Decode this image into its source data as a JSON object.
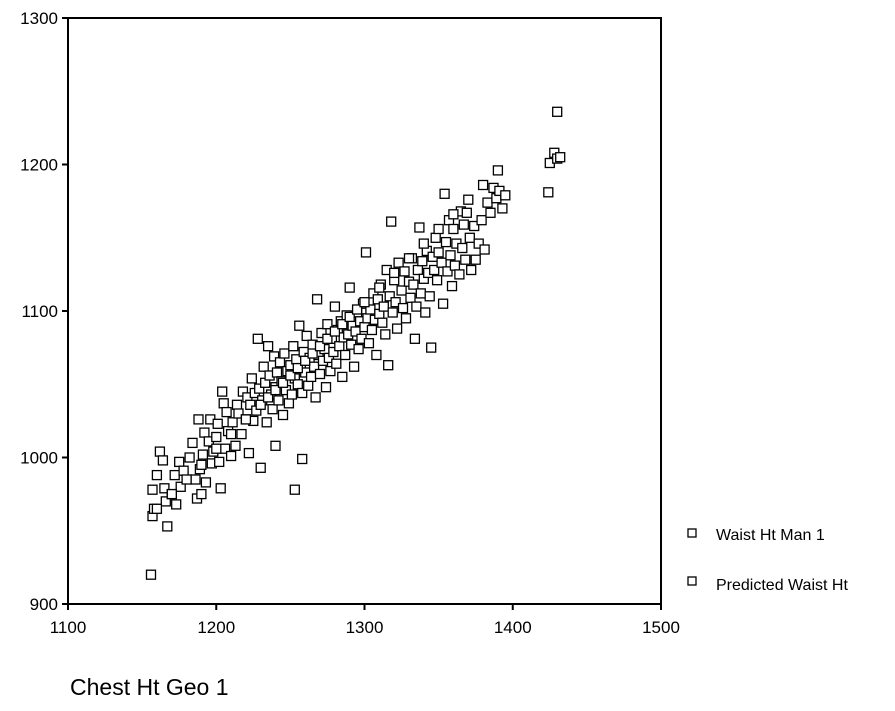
{
  "chart_data": {
    "type": "scatter",
    "title": "",
    "xlabel": "Chest Ht Geo 1",
    "ylabel": "",
    "xlim": [
      1100,
      1500
    ],
    "ylim": [
      900,
      1300
    ],
    "x_ticks": [
      1100,
      1200,
      1300,
      1400,
      1500
    ],
    "y_ticks": [
      900,
      1000,
      1100,
      1200,
      1300
    ],
    "grid": false,
    "legend": {
      "placement": "right",
      "entries": [
        "Waist Ht Man 1",
        "Predicted Waist Ht"
      ]
    },
    "marker": "open-square",
    "colors": {
      "marker_stroke": "#000000",
      "marker_fill": "#ffffff",
      "axes": "#000000"
    },
    "series": [
      {
        "name": "Waist Ht Man 1",
        "points": [
          [
            1156,
            920
          ],
          [
            1157,
            960
          ],
          [
            1158,
            965
          ],
          [
            1157,
            978
          ],
          [
            1160,
            988
          ],
          [
            1162,
            1004
          ],
          [
            1164,
            998
          ],
          [
            1165,
            979
          ],
          [
            1166,
            970
          ],
          [
            1167,
            953
          ],
          [
            1170,
            975
          ],
          [
            1172,
            988
          ],
          [
            1173,
            968
          ],
          [
            1175,
            997
          ],
          [
            1176,
            980
          ],
          [
            1178,
            991
          ],
          [
            1182,
            1000
          ],
          [
            1184,
            1010
          ],
          [
            1186,
            985
          ],
          [
            1187,
            972
          ],
          [
            1188,
            1026
          ],
          [
            1189,
            992
          ],
          [
            1190,
            975
          ],
          [
            1191,
            1002
          ],
          [
            1192,
            1017
          ],
          [
            1193,
            983
          ],
          [
            1195,
            1011
          ],
          [
            1196,
            1026
          ],
          [
            1197,
            996
          ],
          [
            1198,
            1004
          ],
          [
            1200,
            1014
          ],
          [
            1201,
            1023
          ],
          [
            1202,
            997
          ],
          [
            1203,
            979
          ],
          [
            1204,
            1045
          ],
          [
            1205,
            1037
          ],
          [
            1206,
            1006
          ],
          [
            1207,
            1031
          ],
          [
            1208,
            1018
          ],
          [
            1210,
            1001
          ],
          [
            1211,
            1024
          ],
          [
            1213,
            1008
          ],
          [
            1214,
            1036
          ],
          [
            1215,
            1030
          ],
          [
            1217,
            1016
          ],
          [
            1218,
            1045
          ],
          [
            1220,
            1026
          ],
          [
            1221,
            1041
          ],
          [
            1222,
            1003
          ],
          [
            1223,
            1036
          ],
          [
            1224,
            1054
          ],
          [
            1225,
            1025
          ],
          [
            1226,
            1044
          ],
          [
            1227,
            1032
          ],
          [
            1228,
            1081
          ],
          [
            1229,
            1047
          ],
          [
            1230,
            993
          ],
          [
            1231,
            1039
          ],
          [
            1232,
            1062
          ],
          [
            1233,
            1051
          ],
          [
            1234,
            1024
          ],
          [
            1235,
            1076
          ],
          [
            1236,
            1056
          ],
          [
            1237,
            1043
          ],
          [
            1238,
            1033
          ],
          [
            1239,
            1069
          ],
          [
            1240,
            1048
          ],
          [
            1240,
            1008
          ],
          [
            1241,
            1058
          ],
          [
            1242,
            1039
          ],
          [
            1243,
            1065
          ],
          [
            1244,
            1052
          ],
          [
            1245,
            1029
          ],
          [
            1246,
            1071
          ],
          [
            1247,
            1046
          ],
          [
            1248,
            1059
          ],
          [
            1249,
            1037
          ],
          [
            1250,
            1063
          ],
          [
            1251,
            1043
          ],
          [
            1252,
            1076
          ],
          [
            1253,
            978
          ],
          [
            1253,
            1054
          ],
          [
            1254,
            1067
          ],
          [
            1255,
            1050
          ],
          [
            1256,
            1090
          ],
          [
            1257,
            1061
          ],
          [
            1258,
            1044
          ],
          [
            1258,
            999
          ],
          [
            1259,
            1072
          ],
          [
            1260,
            1058
          ],
          [
            1261,
            1083
          ],
          [
            1262,
            1049
          ],
          [
            1263,
            1068
          ],
          [
            1264,
            1055
          ],
          [
            1265,
            1077
          ],
          [
            1266,
            1062
          ],
          [
            1267,
            1041
          ],
          [
            1268,
            1108
          ],
          [
            1269,
            1070
          ],
          [
            1270,
            1057
          ],
          [
            1271,
            1085
          ],
          [
            1272,
            1066
          ],
          [
            1273,
            1074
          ],
          [
            1274,
            1048
          ],
          [
            1275,
            1091
          ],
          [
            1276,
            1068
          ],
          [
            1277,
            1059
          ],
          [
            1278,
            1081
          ],
          [
            1279,
            1072
          ],
          [
            1280,
            1103
          ],
          [
            1281,
            1064
          ],
          [
            1282,
            1087
          ],
          [
            1283,
            1076
          ],
          [
            1284,
            1093
          ],
          [
            1285,
            1055
          ],
          [
            1286,
            1082
          ],
          [
            1287,
            1070
          ],
          [
            1288,
            1097
          ],
          [
            1289,
            1084
          ],
          [
            1290,
            1116
          ],
          [
            1291,
            1077
          ],
          [
            1292,
            1090
          ],
          [
            1293,
            1062
          ],
          [
            1294,
            1086
          ],
          [
            1295,
            1099
          ],
          [
            1296,
            1074
          ],
          [
            1297,
            1093
          ],
          [
            1298,
            1081
          ],
          [
            1299,
            1105
          ],
          [
            1300,
            1089
          ],
          [
            1301,
            1140
          ],
          [
            1302,
            1095
          ],
          [
            1303,
            1078
          ],
          [
            1304,
            1101
          ],
          [
            1305,
            1087
          ],
          [
            1306,
            1112
          ],
          [
            1307,
            1094
          ],
          [
            1308,
            1070
          ],
          [
            1309,
            1108
          ],
          [
            1310,
            1098
          ],
          [
            1311,
            1118
          ],
          [
            1312,
            1092
          ],
          [
            1313,
            1103
          ],
          [
            1314,
            1084
          ],
          [
            1315,
            1128
          ],
          [
            1316,
            1063
          ],
          [
            1317,
            1110
          ],
          [
            1318,
            1161
          ],
          [
            1319,
            1099
          ],
          [
            1320,
            1121
          ],
          [
            1321,
            1106
          ],
          [
            1322,
            1088
          ],
          [
            1323,
            1133
          ],
          [
            1325,
            1114
          ],
          [
            1326,
            1102
          ],
          [
            1327,
            1127
          ],
          [
            1328,
            1095
          ],
          [
            1330,
            1120
          ],
          [
            1331,
            1109
          ],
          [
            1332,
            1136
          ],
          [
            1333,
            1118
          ],
          [
            1334,
            1081
          ],
          [
            1335,
            1103
          ],
          [
            1336,
            1128
          ],
          [
            1337,
            1157
          ],
          [
            1338,
            1112
          ],
          [
            1339,
            1134
          ],
          [
            1340,
            1122
          ],
          [
            1341,
            1099
          ],
          [
            1342,
            1141
          ],
          [
            1343,
            1126
          ],
          [
            1344,
            1110
          ],
          [
            1345,
            1075
          ],
          [
            1346,
            1137
          ],
          [
            1347,
            1128
          ],
          [
            1348,
            1150
          ],
          [
            1349,
            1121
          ],
          [
            1350,
            1140
          ],
          [
            1352,
            1133
          ],
          [
            1353,
            1105
          ],
          [
            1354,
            1180
          ],
          [
            1355,
            1147
          ],
          [
            1356,
            1127
          ],
          [
            1357,
            1162
          ],
          [
            1358,
            1138
          ],
          [
            1359,
            1117
          ],
          [
            1360,
            1156
          ],
          [
            1361,
            1131
          ],
          [
            1362,
            1146
          ],
          [
            1364,
            1125
          ],
          [
            1365,
            1168
          ],
          [
            1366,
            1143
          ],
          [
            1367,
            1159
          ],
          [
            1368,
            1135
          ],
          [
            1369,
            1167
          ],
          [
            1371,
            1150
          ],
          [
            1372,
            1128
          ],
          [
            1374,
            1158
          ],
          [
            1375,
            1135
          ],
          [
            1377,
            1146
          ],
          [
            1379,
            1162
          ],
          [
            1381,
            1142
          ],
          [
            1383,
            1174
          ],
          [
            1385,
            1167
          ],
          [
            1387,
            1184
          ],
          [
            1389,
            1177
          ],
          [
            1391,
            1182
          ],
          [
            1393,
            1170
          ],
          [
            1395,
            1179
          ],
          [
            1424,
            1181
          ],
          [
            1425,
            1201
          ],
          [
            1428,
            1208
          ],
          [
            1430,
            1204
          ],
          [
            1432,
            1205
          ]
        ]
      },
      {
        "name": "Predicted Waist Ht",
        "points": [
          [
            1160,
            965
          ],
          [
            1170,
            975
          ],
          [
            1180,
            985
          ],
          [
            1190,
            995
          ],
          [
            1200,
            1006
          ],
          [
            1210,
            1016
          ],
          [
            1220,
            1026
          ],
          [
            1230,
            1036
          ],
          [
            1235,
            1041
          ],
          [
            1240,
            1046
          ],
          [
            1245,
            1051
          ],
          [
            1250,
            1056
          ],
          [
            1255,
            1061
          ],
          [
            1260,
            1066
          ],
          [
            1265,
            1071
          ],
          [
            1270,
            1076
          ],
          [
            1275,
            1081
          ],
          [
            1280,
            1086
          ],
          [
            1285,
            1091
          ],
          [
            1290,
            1096
          ],
          [
            1295,
            1101
          ],
          [
            1300,
            1106
          ],
          [
            1310,
            1116
          ],
          [
            1320,
            1126
          ],
          [
            1330,
            1136
          ],
          [
            1340,
            1146
          ],
          [
            1350,
            1156
          ],
          [
            1360,
            1166
          ],
          [
            1370,
            1176
          ],
          [
            1380,
            1186
          ],
          [
            1390,
            1196
          ],
          [
            1430,
            1236
          ]
        ]
      }
    ]
  }
}
